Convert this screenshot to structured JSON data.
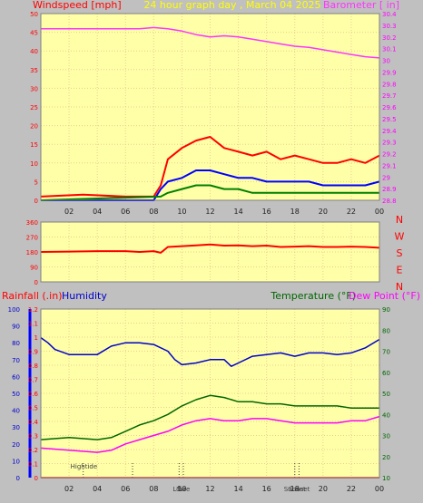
{
  "colors": {
    "background": "#c0c0c0",
    "plot_bg": "#ffffa8",
    "grid": "#e8d090",
    "windspeed": "#ff0000",
    "wind_avg": "#0000ff",
    "wind_low": "#008000",
    "barometer": "#ff33ff",
    "direction": "#ff0000",
    "rainfall": "#ff0000",
    "humidity": "#0000cc",
    "temperature": "#006600",
    "dew_point": "#ff00ff",
    "title": "#ffff00",
    "rain_axis": "#0000ff"
  },
  "chart_data": [
    {
      "type": "line",
      "title": "24 hour graph day , March 04 2025",
      "left_label": "Windspeed [mph]",
      "right_label": "Barometer [ in]",
      "x_ticks": [
        "02",
        "04",
        "06",
        "08",
        "10",
        "12",
        "14",
        "16",
        "18",
        "20",
        "22",
        "00"
      ],
      "x_range": [
        0,
        24
      ],
      "y_left": {
        "range": [
          0,
          50
        ],
        "ticks": [
          "0",
          "5",
          "10",
          "15",
          "20",
          "25",
          "30",
          "35",
          "40",
          "45",
          "50"
        ]
      },
      "y_right": {
        "range": [
          28.8,
          30.4
        ],
        "ticks": [
          "28.8",
          "28.9",
          "29",
          "29.1",
          "29.2",
          "29.3",
          "29.4",
          "29.5",
          "29.6",
          "29.7",
          "29.8",
          "29.9",
          "30",
          "30.1",
          "30.2",
          "30.3",
          "30.4"
        ]
      },
      "series": [
        {
          "name": "Windspeed [mph]",
          "axis": "left",
          "x": [
            0,
            3,
            6,
            8,
            8.5,
            9,
            10,
            11,
            12,
            13,
            14,
            15,
            16,
            17,
            18,
            19,
            20,
            21,
            22,
            23,
            24
          ],
          "y": [
            1,
            1.5,
            1,
            1,
            4,
            11,
            14,
            16,
            17,
            14,
            13,
            12,
            13,
            11,
            12,
            11,
            10,
            10,
            11,
            10,
            12
          ]
        },
        {
          "name": "Wind average",
          "axis": "left",
          "x": [
            0,
            8,
            8.5,
            9,
            10,
            11,
            12,
            13,
            14,
            15,
            16,
            17,
            18,
            19,
            20,
            21,
            22,
            23,
            24
          ],
          "y": [
            0,
            0,
            3,
            5,
            6,
            8,
            8,
            7,
            6,
            6,
            5,
            5,
            5,
            5,
            4,
            4,
            4,
            4,
            5
          ]
        },
        {
          "name": "Wind low",
          "axis": "left",
          "x": [
            0,
            8.5,
            9,
            10,
            11,
            12,
            13,
            14,
            15,
            16,
            17,
            18,
            19,
            20,
            21,
            22,
            23,
            24
          ],
          "y": [
            0,
            1,
            2,
            3,
            4,
            4,
            3,
            3,
            2,
            2,
            2,
            2,
            2,
            2,
            2,
            2,
            2,
            2
          ]
        },
        {
          "name": "Barometer [ in]",
          "axis": "right",
          "x": [
            0,
            2,
            4,
            6,
            7,
            8,
            9,
            10,
            11,
            12,
            13,
            14,
            15,
            16,
            17,
            18,
            19,
            20,
            21,
            22,
            23,
            24
          ],
          "y": [
            30.27,
            30.27,
            30.27,
            30.27,
            30.27,
            30.28,
            30.27,
            30.25,
            30.22,
            30.2,
            30.21,
            30.2,
            30.18,
            30.16,
            30.14,
            30.12,
            30.11,
            30.09,
            30.07,
            30.05,
            30.03,
            30.02
          ]
        }
      ]
    },
    {
      "type": "line",
      "title": "",
      "y_ticks": [
        "360",
        "270",
        "180",
        "90",
        "0"
      ],
      "y_range": [
        0,
        360
      ],
      "compass_labels": [
        "N",
        "W",
        "S",
        "E",
        "N"
      ],
      "series": [
        {
          "name": "Wind direction",
          "x": [
            0,
            2,
            4,
            6,
            7,
            8,
            8.5,
            9,
            10,
            11,
            12,
            13,
            14,
            15,
            16,
            17,
            18,
            19,
            20,
            21,
            22,
            23,
            24
          ],
          "y": [
            180,
            182,
            185,
            185,
            180,
            185,
            175,
            210,
            215,
            220,
            225,
            218,
            220,
            215,
            218,
            210,
            212,
            215,
            210,
            210,
            212,
            210,
            205
          ]
        }
      ]
    },
    {
      "type": "line",
      "title": "",
      "left_labels": [
        "Rainfall (.in)",
        "Humidity"
      ],
      "right_labels": [
        "Temperature (°F)",
        "Dew Point (°F)"
      ],
      "x_ticks": [
        "02",
        "04",
        "06",
        "08",
        "10",
        "12",
        "14",
        "16",
        "18",
        "20",
        "22",
        "00"
      ],
      "x_range": [
        0,
        24
      ],
      "y_rain": {
        "range": [
          0,
          1.2
        ],
        "ticks": [
          "0",
          "0.1",
          "0.2",
          "0.3",
          "0.4",
          "0.5",
          "0.6",
          "0.7",
          "0.8",
          "0.9",
          "1",
          "1.1",
          "1.2"
        ]
      },
      "y_humidity": {
        "range": [
          0,
          100
        ],
        "ticks": [
          "0",
          "10",
          "20",
          "30",
          "40",
          "50",
          "60",
          "70",
          "80",
          "90",
          "100"
        ]
      },
      "y_temp": {
        "range": [
          10,
          90
        ],
        "ticks": [
          "10",
          "20",
          "30",
          "40",
          "50",
          "60",
          "70",
          "80",
          "90"
        ]
      },
      "events": [
        {
          "label": "Hightide",
          "x": 3
        },
        {
          "label": "",
          "x": 6.5
        },
        {
          "label": "Low",
          "x": 9.8
        },
        {
          "label": "Tide",
          "x": 10.1
        },
        {
          "label": "Sunset",
          "x": 18
        },
        {
          "label": "Sunset",
          "x": 18.3
        }
      ],
      "series": [
        {
          "name": "Humidity",
          "axis": "humidity",
          "x": [
            0,
            0.5,
            1,
            2,
            4,
            5,
            6,
            7,
            8,
            9,
            9.5,
            10,
            11,
            12,
            13,
            13.5,
            14,
            15,
            16,
            17,
            18,
            19,
            20,
            21,
            22,
            23,
            24
          ],
          "y": [
            83,
            80,
            76,
            73,
            73,
            78,
            80,
            80,
            79,
            75,
            70,
            67,
            68,
            70,
            70,
            66,
            68,
            72,
            73,
            74,
            72,
            74,
            74,
            73,
            74,
            77,
            82
          ]
        },
        {
          "name": "Temperature (°F)",
          "axis": "temp",
          "x": [
            0,
            2,
            4,
            5,
            6,
            7,
            8,
            9,
            10,
            11,
            12,
            13,
            14,
            15,
            16,
            17,
            18,
            19,
            20,
            21,
            22,
            23,
            24
          ],
          "y": [
            28,
            29,
            28,
            29,
            32,
            35,
            37,
            40,
            44,
            47,
            49,
            48,
            46,
            46,
            45,
            45,
            44,
            44,
            44,
            44,
            43,
            43,
            43
          ]
        },
        {
          "name": "Dew Point (°F)",
          "axis": "temp",
          "x": [
            0,
            2,
            4,
            5,
            6,
            7,
            8,
            9,
            10,
            11,
            12,
            13,
            14,
            15,
            16,
            17,
            18,
            19,
            20,
            21,
            22,
            23,
            24
          ],
          "y": [
            24,
            23,
            22,
            23,
            26,
            28,
            30,
            32,
            35,
            37,
            38,
            37,
            37,
            38,
            38,
            37,
            36,
            36,
            36,
            36,
            37,
            37,
            39
          ]
        },
        {
          "name": "Rainfall (.in)",
          "axis": "rain",
          "x": [
            0,
            24
          ],
          "y": [
            0,
            0
          ]
        }
      ]
    }
  ]
}
